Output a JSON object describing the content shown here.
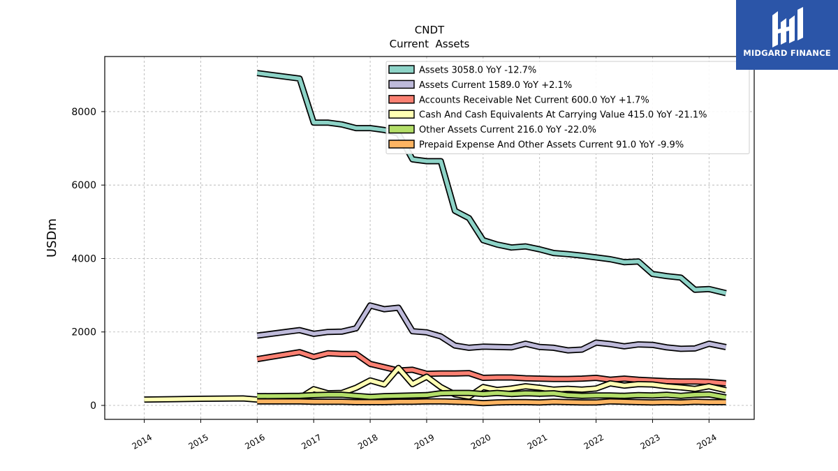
{
  "brand": {
    "name": "MIDGARD FINANCE",
    "bg_color": "#2b55a8"
  },
  "chart_data": {
    "type": "line",
    "title": "CNDT",
    "subtitle": "Current  Assets",
    "ylabel": "USDm",
    "xlabel": "",
    "ylim": [
      -380,
      9500
    ],
    "xlim": [
      2013.3,
      2024.8
    ],
    "yticks": [
      0,
      2000,
      4000,
      6000,
      8000
    ],
    "xticks": [
      "2014",
      "2015",
      "2016",
      "2017",
      "2018",
      "2019",
      "2020",
      "2021",
      "2022",
      "2023",
      "2024"
    ],
    "grid": true,
    "legend_position": "top-right",
    "series": [
      {
        "name": "Assets  3058.0 YoY -12.7%",
        "color": "#8dd3c7",
        "x": [
          2016.0,
          2016.75,
          2017.0,
          2017.25,
          2017.5,
          2017.75,
          2018.0,
          2018.25,
          2018.5,
          2018.75,
          2019.0,
          2019.25,
          2019.5,
          2019.75,
          2020.0,
          2020.25,
          2020.5,
          2020.75,
          2021.0,
          2021.25,
          2021.5,
          2021.75,
          2022.0,
          2022.25,
          2022.5,
          2022.75,
          2023.0,
          2023.25,
          2023.5,
          2023.75,
          2024.0,
          2024.3
        ],
        "y": [
          9050,
          8900,
          7700,
          7700,
          7650,
          7550,
          7550,
          7500,
          7400,
          6700,
          6650,
          6650,
          5300,
          5100,
          4500,
          4380,
          4300,
          4330,
          4250,
          4150,
          4120,
          4080,
          4030,
          3980,
          3900,
          3920,
          3580,
          3520,
          3480,
          3150,
          3170,
          3058
        ]
      },
      {
        "name": "Assets Current  1589.0 YoY +2.1%",
        "color": "#bebada",
        "x": [
          2016.0,
          2016.75,
          2017.0,
          2017.25,
          2017.5,
          2017.75,
          2018.0,
          2018.25,
          2018.5,
          2018.75,
          2019.0,
          2019.25,
          2019.5,
          2019.75,
          2020.0,
          2020.25,
          2020.5,
          2020.75,
          2021.0,
          2021.25,
          2021.5,
          2021.75,
          2022.0,
          2022.25,
          2022.5,
          2022.75,
          2023.0,
          2023.25,
          2023.5,
          2023.75,
          2024.0,
          2024.3
        ],
        "y": [
          1900,
          2050,
          1950,
          2000,
          2010,
          2100,
          2720,
          2620,
          2660,
          2020,
          1990,
          1880,
          1630,
          1570,
          1600,
          1590,
          1580,
          1680,
          1590,
          1570,
          1500,
          1520,
          1710,
          1670,
          1610,
          1660,
          1650,
          1580,
          1540,
          1550,
          1680,
          1589
        ]
      },
      {
        "name": "Accounts Receivable Net Current  600.0 YoY +1.7%",
        "color": "#fb8072",
        "x": [
          2016.0,
          2016.75,
          2017.0,
          2017.25,
          2017.5,
          2017.75,
          2018.0,
          2018.25,
          2018.5,
          2018.75,
          2019.0,
          2019.25,
          2019.5,
          2019.75,
          2020.0,
          2020.25,
          2020.5,
          2020.75,
          2021.0,
          2021.25,
          2021.5,
          2021.75,
          2022.0,
          2022.25,
          2022.5,
          2022.75,
          2023.0,
          2023.25,
          2023.5,
          2023.75,
          2024.0,
          2024.3
        ],
        "y": [
          1260,
          1450,
          1320,
          1420,
          1400,
          1400,
          1130,
          1040,
          950,
          970,
          860,
          870,
          870,
          880,
          750,
          760,
          760,
          740,
          730,
          720,
          720,
          730,
          750,
          700,
          730,
          700,
          680,
          660,
          650,
          650,
          640,
          600
        ]
      },
      {
        "name": "Cash And Cash Equivalents At Carrying Value  415.0 YoY -21.1%",
        "color": "#ffffb3",
        "x": [
          2014.0,
          2015.0,
          2015.75,
          2016.0,
          2016.75,
          2017.0,
          2017.25,
          2017.5,
          2017.75,
          2018.0,
          2018.25,
          2018.5,
          2018.75,
          2019.0,
          2019.25,
          2019.5,
          2019.75,
          2020.0,
          2020.25,
          2020.5,
          2020.75,
          2021.0,
          2021.25,
          2021.5,
          2021.75,
          2022.0,
          2022.25,
          2022.5,
          2022.75,
          2023.0,
          2023.25,
          2023.5,
          2023.75,
          2024.0,
          2024.3
        ],
        "y": [
          160,
          180,
          190,
          160,
          200,
          440,
          330,
          340,
          480,
          680,
          570,
          1020,
          580,
          780,
          500,
          300,
          240,
          500,
          420,
          460,
          520,
          480,
          430,
          450,
          430,
          460,
          600,
          540,
          580,
          570,
          520,
          490,
          450,
          520,
          415
        ]
      },
      {
        "name": "Other Assets Current  216.0 YoY -22.0%",
        "color": "#b3de69",
        "x": [
          2016.0,
          2016.75,
          2017.0,
          2017.25,
          2017.5,
          2017.75,
          2018.0,
          2018.25,
          2018.5,
          2018.75,
          2019.0,
          2019.25,
          2019.5,
          2019.75,
          2020.0,
          2020.25,
          2020.5,
          2020.75,
          2021.0,
          2021.25,
          2021.5,
          2021.75,
          2022.0,
          2022.25,
          2022.5,
          2022.75,
          2023.0,
          2023.25,
          2023.5,
          2023.75,
          2024.0,
          2024.3
        ],
        "y": [
          250,
          260,
          280,
          290,
          290,
          260,
          230,
          250,
          260,
          270,
          280,
          330,
          340,
          340,
          310,
          340,
          310,
          330,
          320,
          330,
          280,
          260,
          270,
          270,
          260,
          280,
          270,
          290,
          260,
          290,
          300,
          216
        ]
      },
      {
        "name": "Prepaid Expense And Other Assets Current  91.0 YoY -9.9%",
        "color": "#fdb462",
        "x": [
          2016.0,
          2016.75,
          2017.0,
          2017.25,
          2017.5,
          2017.75,
          2018.0,
          2018.25,
          2018.5,
          2018.75,
          2019.0,
          2019.25,
          2019.5,
          2019.75,
          2020.0,
          2020.25,
          2020.5,
          2020.75,
          2021.0,
          2021.25,
          2021.5,
          2021.75,
          2022.0,
          2022.25,
          2022.5,
          2022.75,
          2023.0,
          2023.25,
          2023.5,
          2023.75,
          2024.0,
          2024.3
        ],
        "y": [
          110,
          110,
          100,
          100,
          100,
          90,
          90,
          90,
          100,
          100,
          110,
          110,
          100,
          90,
          60,
          80,
          90,
          90,
          80,
          100,
          90,
          80,
          80,
          110,
          100,
          90,
          80,
          90,
          80,
          100,
          90,
          91
        ]
      }
    ]
  }
}
